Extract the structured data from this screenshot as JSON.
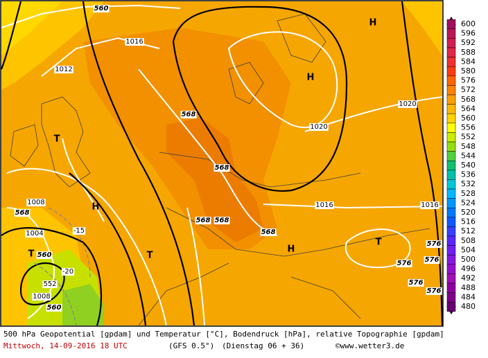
{
  "map": {
    "isobar_labels": [
      "1016",
      "1012",
      "1020",
      "1020",
      "1016",
      "1016",
      "1008",
      "1004",
      "1008"
    ],
    "height_labels": [
      "560",
      "568",
      "568",
      "568",
      "568",
      "568",
      "568",
      "560",
      "560",
      "576",
      "576",
      "576",
      "576",
      "576",
      "552"
    ],
    "temperature_labels": [
      "-15",
      "-20"
    ],
    "systems": [
      "H",
      "H",
      "H",
      "H",
      "T",
      "T",
      "T",
      "T"
    ]
  },
  "legend": {
    "levels": [
      600,
      596,
      592,
      588,
      584,
      580,
      576,
      572,
      568,
      564,
      560,
      556,
      552,
      548,
      544,
      540,
      536,
      532,
      528,
      524,
      520,
      516,
      512,
      508,
      504,
      500,
      496,
      492,
      488,
      484,
      480
    ],
    "colors": [
      "#a0105e",
      "#b81858",
      "#d02050",
      "#e02848",
      "#f03030",
      "#ff3c10",
      "#ff6400",
      "#ff8200",
      "#ffa000",
      "#ffb800",
      "#ffd400",
      "#ffff00",
      "#c8f000",
      "#90e010",
      "#50d040",
      "#10c070",
      "#00c0a8",
      "#00c8d8",
      "#00b8ff",
      "#0098ff",
      "#0078ff",
      "#1058ff",
      "#3840ff",
      "#5828ff",
      "#7020f0",
      "#8418e0",
      "#9410d0",
      "#a010b8",
      "#9000a0",
      "#800088",
      "#680070"
    ]
  },
  "footer": {
    "line1": "500 hPa Geopotential [gpdam] und Temperatur [°C], Bodendruck [hPa], relative Topographie [gpdam]",
    "date": "Mittwoch, 14-09-2016  18 UTC",
    "model": "(GFS 0.5°)",
    "run": "(Dienstag 06 + 36)",
    "copyright": "©www.wetter3.de"
  }
}
